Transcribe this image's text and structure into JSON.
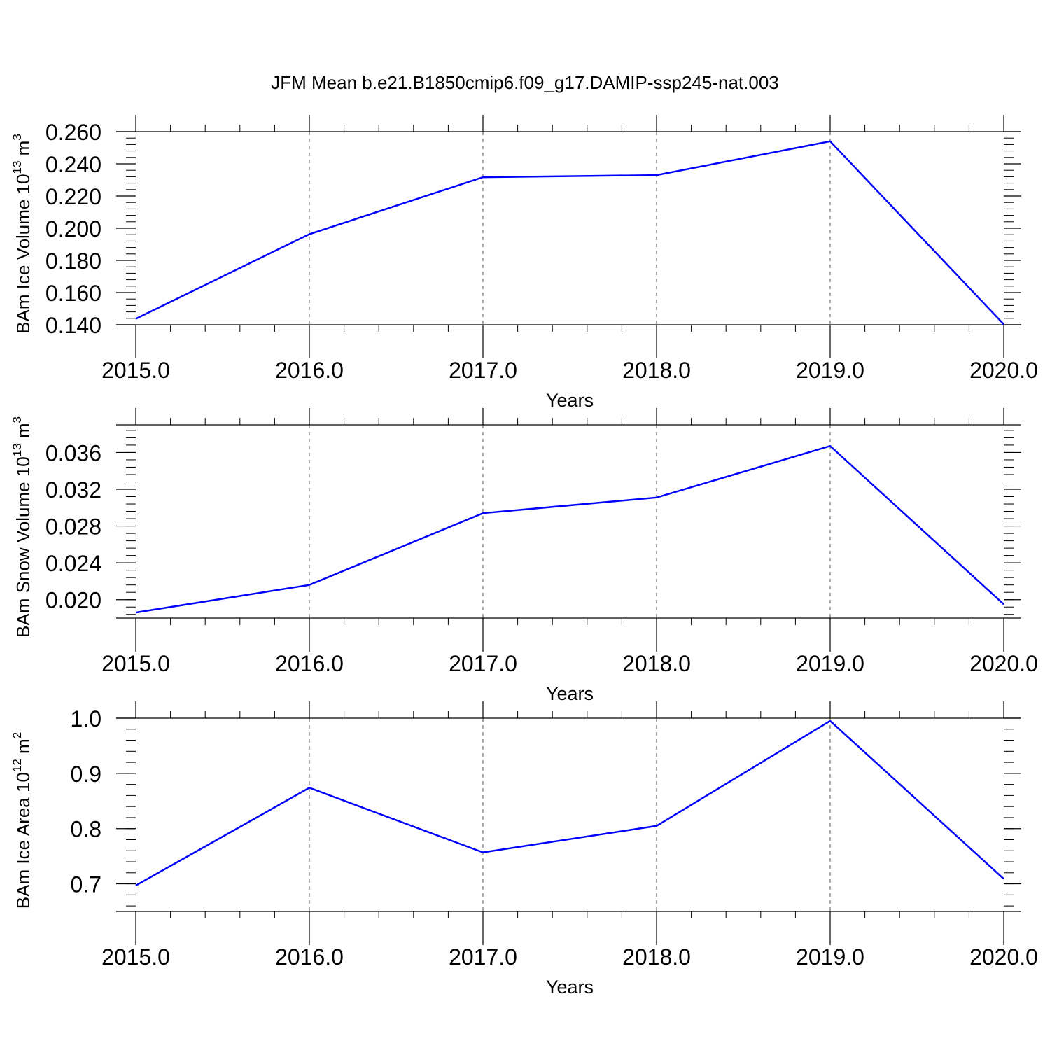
{
  "title": "JFM Mean b.e21.B1850cmip6.f09_g17.DAMIP-ssp245-nat.003",
  "line_color": "#0000ff",
  "chart_data": [
    {
      "type": "line",
      "xlabel": "Years",
      "ylabel": {
        "text": "BAm Ice Volume 10",
        "exp": "13",
        "unit": " m",
        "unit_exp": "3"
      },
      "x_ticks": [
        "2015.0",
        "2016.0",
        "2017.0",
        "2018.0",
        "2019.0",
        "2020.0"
      ],
      "y_ticks": [
        "0.140",
        "0.160",
        "0.180",
        "0.200",
        "0.220",
        "0.240",
        "0.260"
      ],
      "y_tick_values": [
        0.14,
        0.16,
        0.18,
        0.2,
        0.22,
        0.24,
        0.26
      ],
      "xlim": [
        2015,
        2020
      ],
      "ylim": [
        0.14,
        0.26
      ],
      "x": [
        2015,
        2016,
        2017,
        2018,
        2019,
        2020
      ],
      "y": [
        0.1437,
        0.1963,
        0.2317,
        0.233,
        0.254,
        0.1403
      ]
    },
    {
      "type": "line",
      "xlabel": "Years",
      "ylabel": {
        "text": "BAm Snow Volume 10",
        "exp": "13",
        "unit": " m",
        "unit_exp": "3"
      },
      "x_ticks": [
        "2015.0",
        "2016.0",
        "2017.0",
        "2018.0",
        "2019.0",
        "2020.0"
      ],
      "y_ticks": [
        "0.020",
        "0.024",
        "0.028",
        "0.032",
        "0.036"
      ],
      "y_tick_values": [
        0.02,
        0.024,
        0.028,
        0.032,
        0.036
      ],
      "xlim": [
        2015,
        2020
      ],
      "ylim": [
        0.018,
        0.039
      ],
      "x": [
        2015,
        2016,
        2017,
        2018,
        2019,
        2020
      ],
      "y": [
        0.0186,
        0.0216,
        0.0294,
        0.0311,
        0.0367,
        0.0195
      ]
    },
    {
      "type": "line",
      "xlabel": "Years",
      "ylabel": {
        "text": "BAm Ice Area 10",
        "exp": "12",
        "unit": " m",
        "unit_exp": "2"
      },
      "x_ticks": [
        "2015.0",
        "2016.0",
        "2017.0",
        "2018.0",
        "2019.0",
        "2020.0"
      ],
      "y_ticks": [
        "0.7",
        "0.8",
        "0.9",
        "1.0"
      ],
      "y_tick_values": [
        0.7,
        0.8,
        0.9,
        1.0
      ],
      "xlim": [
        2015,
        2020
      ],
      "ylim": [
        0.65,
        1.0
      ],
      "x": [
        2015,
        2016,
        2017,
        2018,
        2019,
        2020
      ],
      "y": [
        0.697,
        0.874,
        0.757,
        0.805,
        0.995,
        0.709
      ]
    }
  ]
}
